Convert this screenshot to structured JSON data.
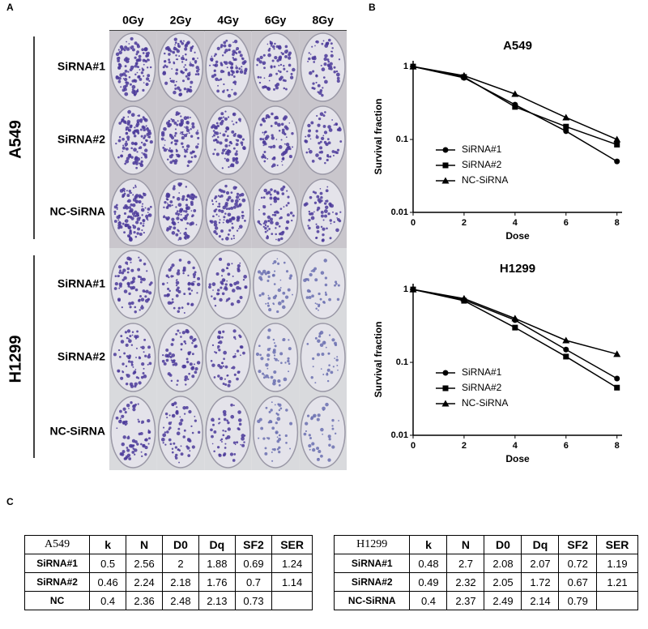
{
  "panels": [
    "A",
    "B",
    "C"
  ],
  "plates": {
    "columns": [
      "0Gy",
      "2Gy",
      "4Gy",
      "6Gy",
      "8Gy"
    ],
    "groups": [
      {
        "name": "A549",
        "rows": [
          "SiRNA#1",
          "SiRNA#2",
          "NC-SiRNA"
        ]
      },
      {
        "name": "H1299",
        "rows": [
          "SiRNA#1",
          "SiRNA#2",
          "NC-SiRNA"
        ]
      }
    ]
  },
  "chart_data": [
    {
      "type": "line",
      "title": "A549",
      "xlabel": "Dose",
      "ylabel": "Survival fraction",
      "log_y": true,
      "x": [
        0,
        2,
        4,
        6,
        8
      ],
      "xlim": [
        0,
        8.2
      ],
      "xticks": [
        0,
        2,
        4,
        6,
        8
      ],
      "ylim": [
        0.01,
        1.2
      ],
      "yticks": [
        0.01,
        0.1,
        1
      ],
      "series": [
        {
          "name": "SiRNA#1",
          "color": "#000000",
          "marker": "circle",
          "values": [
            1,
            0.7,
            0.3,
            0.13,
            0.05
          ]
        },
        {
          "name": "SiRNA#2",
          "color": "#000000",
          "marker": "square",
          "values": [
            1,
            0.72,
            0.28,
            0.15,
            0.085
          ]
        },
        {
          "name": "NC-SiRNA",
          "color": "#000000",
          "marker": "triangle",
          "values": [
            1,
            0.75,
            0.42,
            0.2,
            0.1
          ]
        }
      ]
    },
    {
      "type": "line",
      "title": "H1299",
      "xlabel": "Dose",
      "ylabel": "Survival fraction",
      "log_y": true,
      "x": [
        0,
        2,
        4,
        6,
        8
      ],
      "xlim": [
        0,
        8.2
      ],
      "xticks": [
        0,
        2,
        4,
        6,
        8
      ],
      "ylim": [
        0.01,
        1.2
      ],
      "yticks": [
        0.01,
        0.1,
        1
      ],
      "series": [
        {
          "name": "SiRNA#1",
          "color": "#000000",
          "marker": "circle",
          "values": [
            1,
            0.72,
            0.38,
            0.15,
            0.06
          ]
        },
        {
          "name": "SiRNA#2",
          "color": "#000000",
          "marker": "square",
          "values": [
            1,
            0.7,
            0.3,
            0.12,
            0.045
          ]
        },
        {
          "name": "NC-SiRNA",
          "color": "#000000",
          "marker": "triangle",
          "values": [
            1,
            0.75,
            0.4,
            0.2,
            0.13
          ]
        }
      ]
    }
  ],
  "tables": [
    {
      "header": [
        "A549",
        "k",
        "N",
        "D0",
        "Dq",
        "SF2",
        "SER"
      ],
      "rows": [
        [
          "SiRNA#1",
          0.5,
          2.56,
          2,
          1.88,
          0.69,
          1.24
        ],
        [
          "SiRNA#2",
          0.46,
          2.24,
          2.18,
          1.76,
          0.7,
          1.14
        ],
        [
          "NC",
          0.4,
          2.36,
          2.48,
          2.13,
          0.73
        ]
      ]
    },
    {
      "header": [
        "H1299",
        "k",
        "N",
        "D0",
        "Dq",
        "SF2",
        "SER"
      ],
      "rows": [
        [
          "SiRNA#1",
          0.48,
          2.7,
          2.08,
          2.07,
          0.72,
          1.19
        ],
        [
          "SiRNA#2",
          0.49,
          2.32,
          2.05,
          1.72,
          0.67,
          1.21
        ],
        [
          "NC-SiRNA",
          0.4,
          2.37,
          2.49,
          2.14,
          0.79
        ]
      ]
    }
  ]
}
